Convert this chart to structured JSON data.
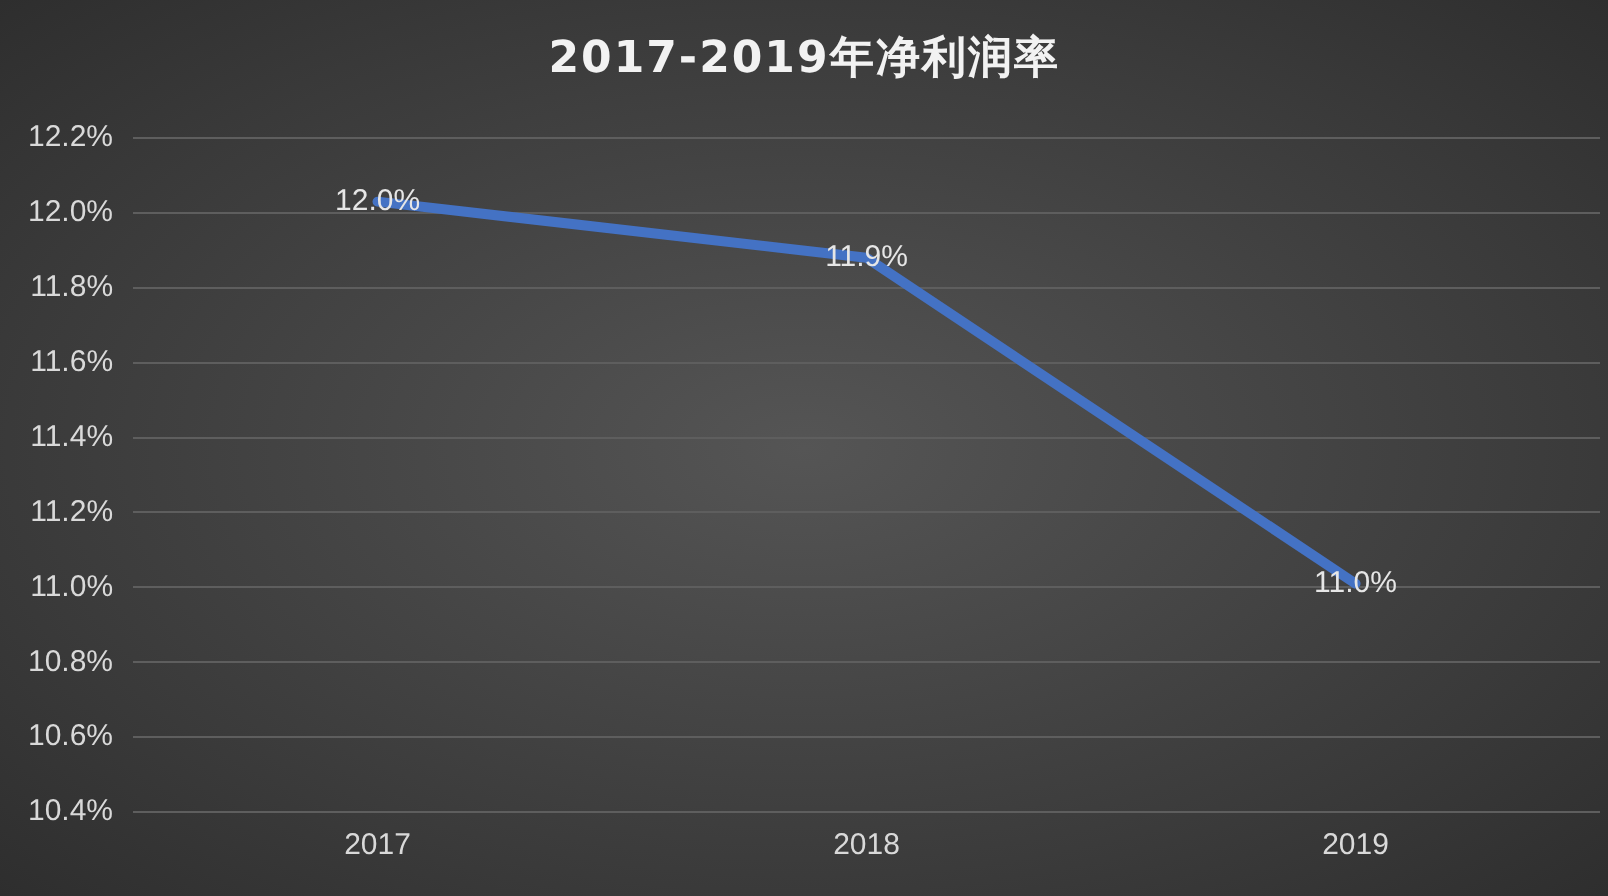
{
  "chart_data": {
    "type": "line",
    "title": "2017-2019年净利润率",
    "categories": [
      "2017",
      "2018",
      "2019"
    ],
    "series": [
      {
        "color": "#4472c4",
        "values": [
          12.03,
          11.88,
          11.01
        ],
        "value_labels": [
          "12.0%",
          "11.9%",
          "11.0%"
        ]
      }
    ],
    "ylim": [
      10.4,
      12.2
    ],
    "yticks": [
      {
        "value": 10.4,
        "label": "10.4%"
      },
      {
        "value": 10.6,
        "label": "10.6%"
      },
      {
        "value": 10.8,
        "label": "10.8%"
      },
      {
        "value": 11.0,
        "label": "11.0%"
      },
      {
        "value": 11.2,
        "label": "11.2%"
      },
      {
        "value": 11.4,
        "label": "11.4%"
      },
      {
        "value": 11.6,
        "label": "11.6%"
      },
      {
        "value": 11.8,
        "label": "11.8%"
      },
      {
        "value": 12.0,
        "label": "12.0%"
      },
      {
        "value": 12.2,
        "label": "12.2%"
      }
    ],
    "grid": "y",
    "marker": "none",
    "line_style": "solid"
  }
}
